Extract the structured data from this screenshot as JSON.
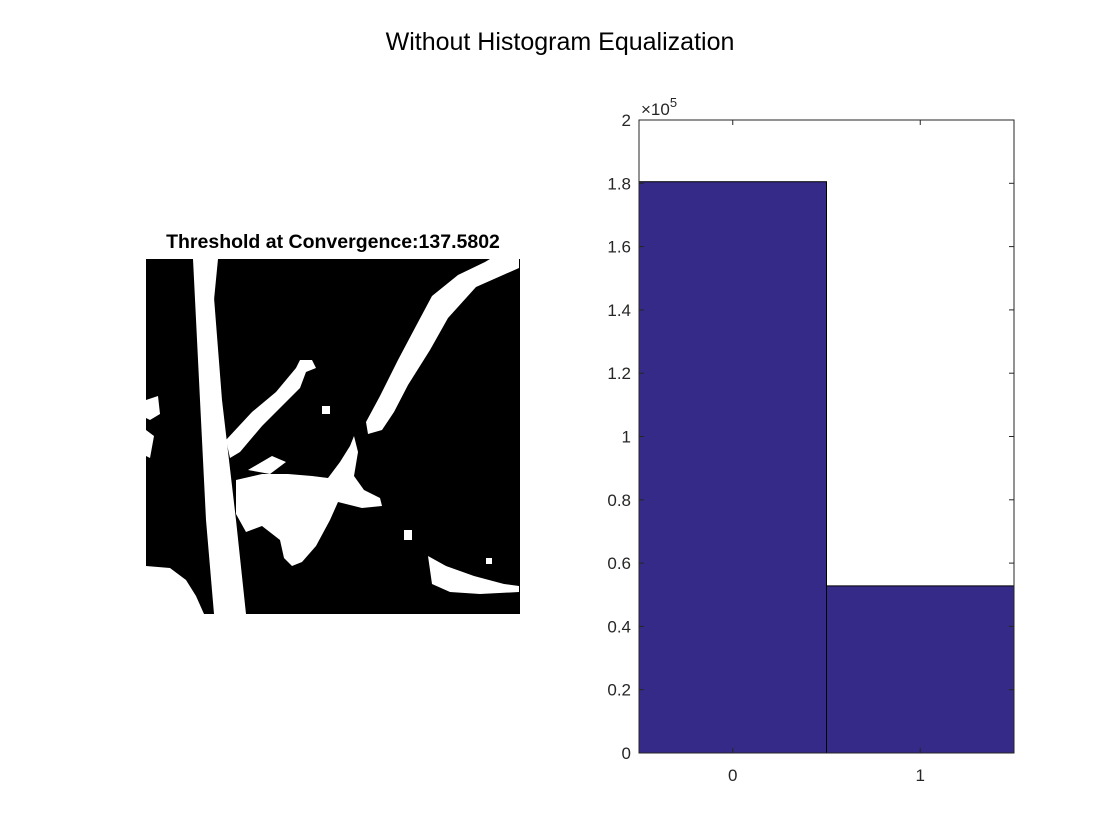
{
  "figure": {
    "title": "Without Histogram Equalization"
  },
  "image_panel": {
    "title": "Threshold at Convergence:137.5802",
    "content": "binary-threshold-image",
    "colors": {
      "background": "#000000",
      "foreground": "#ffffff"
    }
  },
  "chart_data": {
    "type": "bar",
    "categories": [
      "0",
      "1"
    ],
    "values": [
      180500,
      52800
    ],
    "ylim": [
      0,
      200000
    ],
    "yticks": [
      "0",
      "0.2",
      "0.4",
      "0.6",
      "0.8",
      "1",
      "1.2",
      "1.4",
      "1.6",
      "1.8",
      "2"
    ],
    "ytick_values": [
      0,
      20000,
      40000,
      60000,
      80000,
      100000,
      120000,
      140000,
      160000,
      180000,
      200000
    ],
    "exponent_label": "×10",
    "exponent_power": "5",
    "grid": false,
    "bar_color": "#352a87"
  }
}
